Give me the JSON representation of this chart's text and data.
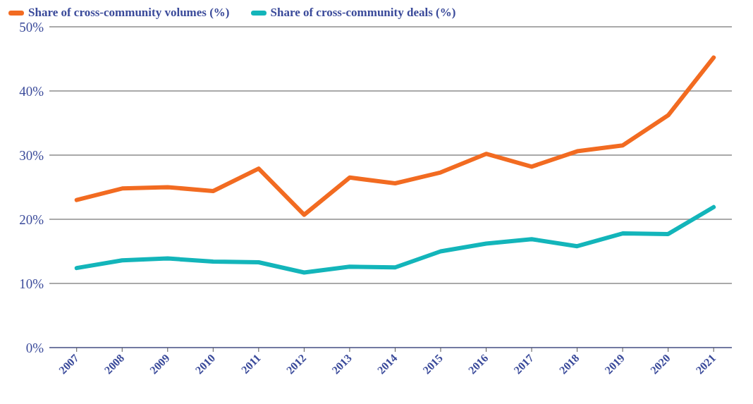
{
  "chart_data": {
    "type": "line",
    "categories": [
      "2007",
      "2008",
      "2009",
      "2010",
      "2011",
      "2012",
      "2013",
      "2014",
      "2015",
      "2016",
      "2017",
      "2018",
      "2019",
      "2020",
      "2021"
    ],
    "series": [
      {
        "name": "Share of cross-community volumes (%)",
        "color": "#f26b21",
        "values": [
          23.0,
          24.8,
          25.0,
          24.4,
          27.9,
          20.7,
          26.5,
          25.6,
          27.3,
          30.2,
          28.2,
          30.6,
          31.5,
          36.2,
          45.2
        ]
      },
      {
        "name": "Share of cross-community deals (%)",
        "color": "#13b5ba",
        "values": [
          12.4,
          13.6,
          13.9,
          13.4,
          13.3,
          11.7,
          12.6,
          12.5,
          15.0,
          16.2,
          16.9,
          15.8,
          17.8,
          17.7,
          21.9
        ]
      }
    ],
    "ylim": [
      0,
      50
    ],
    "yticks": [
      {
        "value": 0,
        "label": "0%"
      },
      {
        "value": 10,
        "label": "10%"
      },
      {
        "value": 20,
        "label": "20%"
      },
      {
        "value": 30,
        "label": "30%"
      },
      {
        "value": 40,
        "label": "40%"
      },
      {
        "value": 50,
        "label": "50%"
      }
    ],
    "grid": "y",
    "legend": "top left",
    "marker": "none",
    "line_style": "solid"
  }
}
